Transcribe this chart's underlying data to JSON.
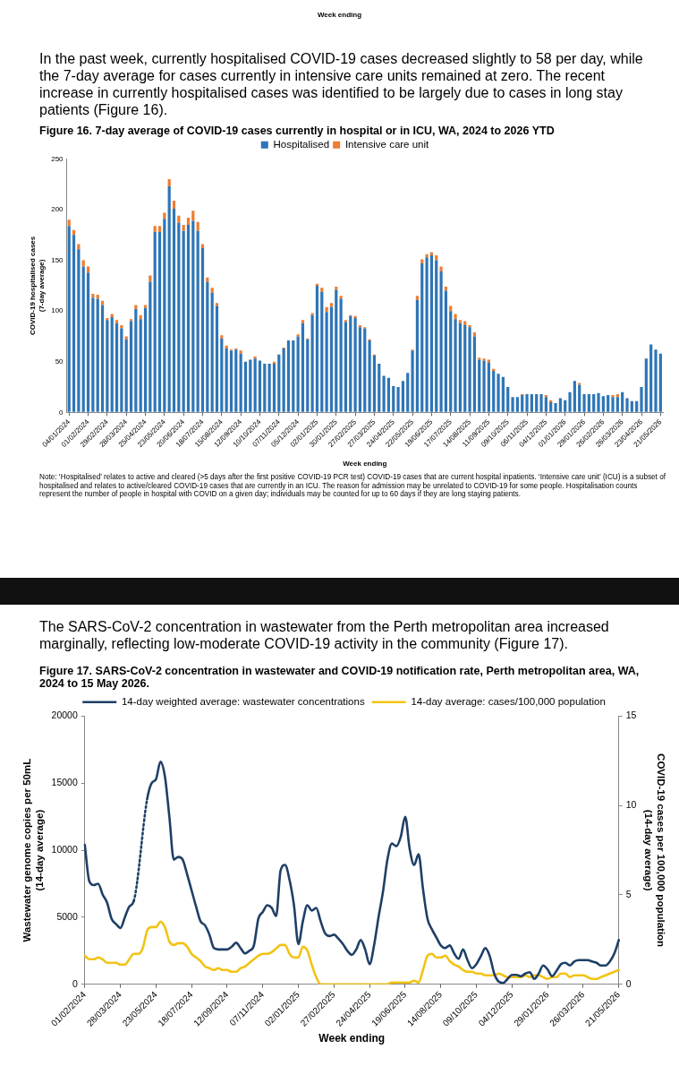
{
  "chart_data": [
    {
      "type": "bar",
      "title": "Figure 16. 7-day average of COVID-19 cases currently in hospital or in ICU, WA, 2024 to 2026 YTD",
      "xlabel": "Week ending",
      "ylabel": "COVID-19 hospitalised cases\n(7-day average)",
      "annotations": [
        "Week ending",
        "In the past week, currently hospitalised COVID-19 cases decreased slightly to 58 per day, while the 7-day average for cases currently in intensive care units remained at zero. The recent increase in currently hospitalised cases was identified to be largely due to cases in long stay patients  (Figure 16).",
        "Note: ‘Hospitalised’ relates to active and cleared (>5 days after the first positive COVID-19 PCR test) COVID-19 cases that are current hospital inpatients. ‘Intensive care unit’ (ICU) is a subset of hospitalised and relates to active/cleared COVID-19 cases that are currently in an ICU. The reason for admission may be unrelated to COVID-19 for some people. Hospitalisation counts represent the number of people in hospital with COVID on a given day; individuals may be counted for up to 60 days if they are long staying patients."
      ],
      "categories": [
        "04/01/2024",
        null,
        null,
        null,
        "01/02/2024",
        null,
        null,
        null,
        "29/02/2024",
        null,
        null,
        null,
        "28/03/2024",
        null,
        null,
        null,
        "25/04/2024",
        null,
        null,
        null,
        "23/05/2024",
        null,
        null,
        null,
        "20/06/2024",
        null,
        null,
        null,
        "18/07/2024",
        null,
        null,
        null,
        "15/08/2024",
        null,
        null,
        null,
        "12/09/2024",
        null,
        null,
        null,
        "10/10/2024",
        null,
        null,
        null,
        "07/11/2024",
        null,
        null,
        null,
        "05/12/2024",
        null,
        null,
        null,
        "02/01/2025",
        null,
        null,
        null,
        "30/01/2025",
        null,
        null,
        null,
        "27/02/2025",
        null,
        null,
        null,
        "27/03/2025",
        null,
        null,
        null,
        "24/04/2025",
        null,
        null,
        null,
        "22/05/2025",
        null,
        null,
        null,
        "19/06/2025",
        null,
        null,
        null,
        "17/07/2025",
        null,
        null,
        null,
        "14/08/2025",
        null,
        null,
        null,
        "11/09/2025",
        null,
        null,
        null,
        "09/10/2025",
        null,
        null,
        null,
        "06/11/2025",
        null,
        null,
        null,
        "04/12/2025",
        null,
        null,
        null,
        "01/01/2026",
        null,
        null,
        null,
        "29/01/2026",
        null,
        null,
        null,
        "26/02/2026",
        null,
        null,
        null,
        "26/03/2026",
        null,
        null,
        null,
        "23/04/2026",
        null,
        null,
        null,
        "21/05/2026"
      ],
      "series": [
        {
          "name": "Hospitalised",
          "color": "#2e75b6",
          "values": [
            184,
            175,
            161,
            144,
            138,
            113,
            112,
            106,
            91,
            94,
            88,
            83,
            72,
            90,
            102,
            92,
            103,
            129,
            178,
            178,
            191,
            223,
            201,
            187,
            179,
            185,
            189,
            179,
            162,
            129,
            118,
            105,
            73,
            63,
            61,
            62,
            58,
            50,
            52,
            53,
            51,
            48,
            48,
            48,
            57,
            63,
            71,
            71,
            75,
            88,
            72,
            96,
            125,
            119,
            99,
            104,
            121,
            112,
            89,
            95,
            93,
            84,
            83,
            71,
            56,
            48,
            36,
            34,
            26,
            25,
            31,
            39,
            61,
            111,
            147,
            153,
            155,
            150,
            139,
            120,
            100,
            92,
            88,
            86,
            84,
            75,
            52,
            51,
            49,
            41,
            38,
            35,
            25,
            15,
            15,
            17,
            18,
            18,
            18,
            18,
            15,
            10,
            9,
            14,
            12,
            20,
            31,
            27,
            18,
            18,
            18,
            19,
            16,
            17,
            15,
            15,
            20,
            14,
            11,
            11,
            25,
            53,
            67,
            62,
            58
          ]
        },
        {
          "name": "Intensive care unit",
          "color": "#ed7d31",
          "values": [
            6,
            5,
            5,
            6,
            6,
            4,
            4,
            4,
            2,
            3,
            3,
            3,
            3,
            2,
            4,
            4,
            3,
            6,
            6,
            6,
            6,
            7,
            8,
            7,
            6,
            7,
            10,
            9,
            4,
            4,
            5,
            3,
            3,
            3,
            1,
            1,
            3,
            0,
            0,
            2,
            0,
            0,
            0,
            2,
            0,
            1,
            0,
            0,
            2,
            3,
            1,
            2,
            2,
            4,
            5,
            4,
            3,
            3,
            2,
            1,
            2,
            2,
            1,
            1,
            1,
            0,
            0,
            0,
            0,
            0,
            0,
            0,
            1,
            4,
            4,
            3,
            3,
            5,
            5,
            4,
            5,
            5,
            3,
            4,
            2,
            4,
            2,
            2,
            3,
            2,
            0,
            0,
            0,
            0,
            0,
            1,
            0,
            0,
            0,
            0,
            2,
            2,
            0,
            0,
            0,
            0,
            0,
            2,
            0,
            0,
            0,
            0,
            0,
            0,
            2,
            3,
            0,
            0,
            0,
            0,
            0,
            0,
            0,
            0,
            0
          ]
        }
      ],
      "stacked": true,
      "ylim": [
        0,
        250
      ],
      "yticks": [
        0,
        50,
        100,
        150,
        200,
        250
      ],
      "legend": "top"
    },
    {
      "type": "line",
      "title": "Figure 17. SARS-CoV-2 concentration in wastewater and COVID-19 notification rate, Perth metropolitan area, WA, 2024 to 15 May 2026.",
      "xlabel": "Week ending",
      "ylabel": "Wastewater genome copies per 50mL\n(14-day average)",
      "y2label": "COVID-19 cases per 100,000 population\n(14-day average)",
      "annotations": [
        "The SARS-CoV-2 concentration in wastewater from the Perth metropolitan area increased marginally, reflecting low-moderate COVID-19 activity in the community (Figure 17)."
      ],
      "categories": [
        "01/02/2024",
        null,
        null,
        null,
        null,
        null,
        null,
        null,
        "28/03/2024",
        null,
        null,
        null,
        null,
        null,
        null,
        null,
        "23/05/2024",
        null,
        null,
        null,
        null,
        null,
        null,
        null,
        "18/07/2024",
        null,
        null,
        null,
        null,
        null,
        null,
        null,
        "12/09/2024",
        null,
        null,
        null,
        null,
        null,
        null,
        null,
        "07/11/2024",
        null,
        null,
        null,
        null,
        null,
        null,
        null,
        "02/01/2025",
        null,
        null,
        null,
        null,
        null,
        null,
        null,
        "27/02/2025",
        null,
        null,
        null,
        null,
        null,
        null,
        null,
        "24/04/2025",
        null,
        null,
        null,
        null,
        null,
        null,
        null,
        "19/06/2025",
        null,
        null,
        null,
        null,
        null,
        null,
        null,
        "14/08/2025",
        null,
        null,
        null,
        null,
        null,
        null,
        null,
        "09/10/2025",
        null,
        null,
        null,
        null,
        null,
        null,
        null,
        "04/12/2025",
        null,
        null,
        null,
        null,
        null,
        null,
        null,
        "29/01/2026",
        null,
        null,
        null,
        null,
        null,
        null,
        null,
        "26/03/2026",
        null,
        null,
        null,
        null,
        null,
        null,
        null,
        "21/05/2026"
      ],
      "series": [
        {
          "name": "14-day weighted average: wastewater concentrations",
          "color": "#1f3f66",
          "values": [
            10400,
            7700,
            7400,
            7500,
            6700,
            6100,
            4900,
            4500,
            4200,
            5000,
            5800,
            6200,
            null,
            null,
            13800,
            15000,
            15300,
            16600,
            15500,
            12500,
            9300,
            9500,
            9300,
            8200,
            7000,
            5800,
            4700,
            4400,
            3700,
            2700,
            2600,
            2600,
            2600,
            2800,
            3100,
            2700,
            2300,
            2500,
            2900,
            4900,
            5400,
            5900,
            5700,
            5100,
            8500,
            8900,
            7800,
            5900,
            3000,
            4700,
            5900,
            5500,
            5700,
            4700,
            3800,
            3600,
            3700,
            3400,
            3000,
            2500,
            2200,
            2600,
            3300,
            2600,
            1500,
            2900,
            5000,
            6900,
            9300,
            10500,
            10300,
            11000,
            12500,
            10100,
            8900,
            9700,
            7100,
            4900,
            4100,
            3500,
            2900,
            2700,
            2900,
            2300,
            1900,
            2600,
            1800,
            1200,
            1500,
            2100,
            2700,
            2100,
            800,
            200,
            100,
            400,
            700,
            700,
            600,
            800,
            900,
            400,
            800,
            1400,
            1100,
            600,
            1000,
            1500,
            1600,
            1400,
            1700,
            1800,
            1800,
            1800,
            1700,
            1600,
            1400,
            1400,
            1700,
            2300,
            3300
          ]
        },
        {
          "name": "14-day average: cases/100,000 population",
          "color": "#f2c314",
          "axis": "y2",
          "values": [
            1.6,
            1.4,
            1.4,
            1.5,
            1.4,
            1.2,
            1.2,
            1.2,
            1.1,
            1.1,
            1.4,
            1.7,
            1.7,
            2.0,
            3.0,
            3.2,
            3.2,
            3.5,
            3.2,
            2.4,
            2.2,
            2.3,
            2.3,
            2.1,
            1.7,
            1.5,
            1.3,
            1.0,
            0.9,
            0.8,
            0.9,
            0.8,
            0.8,
            0.7,
            0.7,
            0.9,
            1.0,
            1.2,
            1.4,
            1.6,
            1.7,
            1.7,
            1.8,
            2.0,
            2.2,
            2.2,
            1.7,
            1.5,
            1.5,
            2.1,
            1.9,
            1.1,
            0.4,
            0,
            0,
            0,
            0,
            0,
            0,
            0,
            0,
            0,
            0,
            0,
            0,
            0,
            0,
            0,
            0,
            0.1,
            0.1,
            0.1,
            0.1,
            0.1,
            0.2,
            0.1,
            0.8,
            1.6,
            1.7,
            1.5,
            1.5,
            1.6,
            1.3,
            1.1,
            1.0,
            0.8,
            0.7,
            0.7,
            0.6,
            0.6,
            0.5,
            0.5,
            0.5,
            0.6,
            0.5,
            0.4,
            0.4,
            0.4,
            0.4,
            0.5,
            0.4,
            0.5,
            0.5,
            0.4,
            0.3,
            0.4,
            0.4,
            0.6,
            0.6,
            0.4,
            0.5,
            0.5,
            0.5,
            0.4,
            0.3,
            0.3,
            0.4,
            0.5,
            0.6,
            0.7,
            0.8
          ]
        }
      ],
      "ylim": [
        0,
        20000
      ],
      "yticks": [
        0,
        5000,
        10000,
        15000,
        20000
      ],
      "y2lim": [
        0,
        15
      ],
      "y2ticks": [
        0,
        5,
        10,
        15
      ],
      "legend": "top",
      "marker": "none",
      "line_style": "solid"
    }
  ]
}
